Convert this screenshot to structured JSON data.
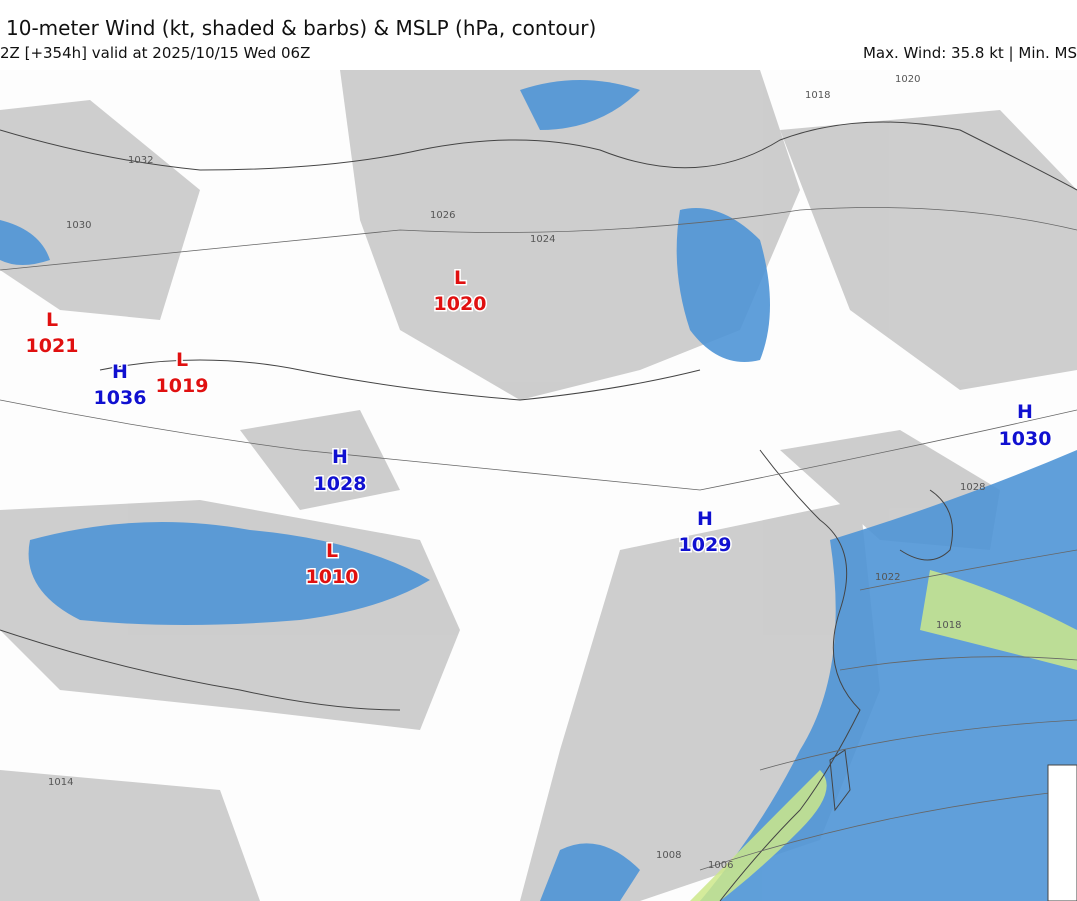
{
  "header": {
    "title": "10-meter Wind (kt, shaded & barbs) & MSLP (hPa, contour)",
    "subtitle": "2Z [+354h] valid at 2025/10/15 Wed 06Z",
    "stats": "Max. Wind: 35.8 kt | Min. MS"
  },
  "centers": [
    {
      "type": "L",
      "value": "1021"
    },
    {
      "type": "H",
      "value": "1036"
    },
    {
      "type": "L",
      "value": "1019"
    },
    {
      "type": "L",
      "value": "1020"
    },
    {
      "type": "H",
      "value": "1028"
    },
    {
      "type": "L",
      "value": "1010"
    },
    {
      "type": "H",
      "value": "1029"
    },
    {
      "type": "H",
      "value": "1030"
    }
  ],
  "contour_labels": [
    "1032",
    "1018",
    "1020",
    "1026",
    "1024",
    "1022",
    "1018",
    "1014",
    "1008",
    "1006",
    "1028",
    "1030"
  ]
}
